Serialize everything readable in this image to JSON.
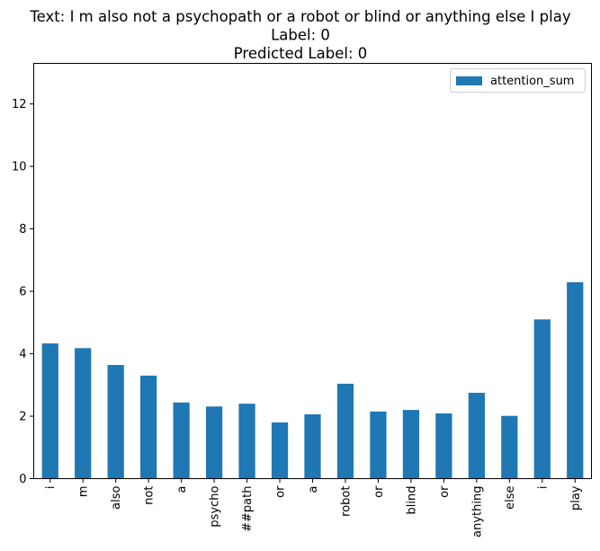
{
  "chart_data": {
    "type": "bar",
    "title_lines": [
      "Text: I m also not a psychopath or a robot or blind or anything else I play",
      "Label: 0",
      "Predicted Label: 0"
    ],
    "categories": [
      "i",
      "m",
      "also",
      "not",
      "a",
      "psycho",
      "##path",
      "or",
      "a",
      "robot",
      "or",
      "blind",
      "or",
      "anything",
      "else",
      "i",
      "play"
    ],
    "series": [
      {
        "name": "attention_sum",
        "values": [
          4.33,
          4.18,
          3.64,
          3.3,
          2.44,
          2.31,
          2.4,
          1.8,
          2.06,
          3.04,
          2.15,
          2.2,
          2.09,
          2.75,
          2.01,
          5.1,
          6.29
        ],
        "color": "#1f77b4"
      }
    ],
    "xlabel": "",
    "ylabel": "",
    "ylim": [
      0,
      13.3
    ],
    "yticks": [
      0,
      2,
      4,
      6,
      8,
      10,
      12
    ],
    "grid": false,
    "legend_position": "top-right"
  }
}
